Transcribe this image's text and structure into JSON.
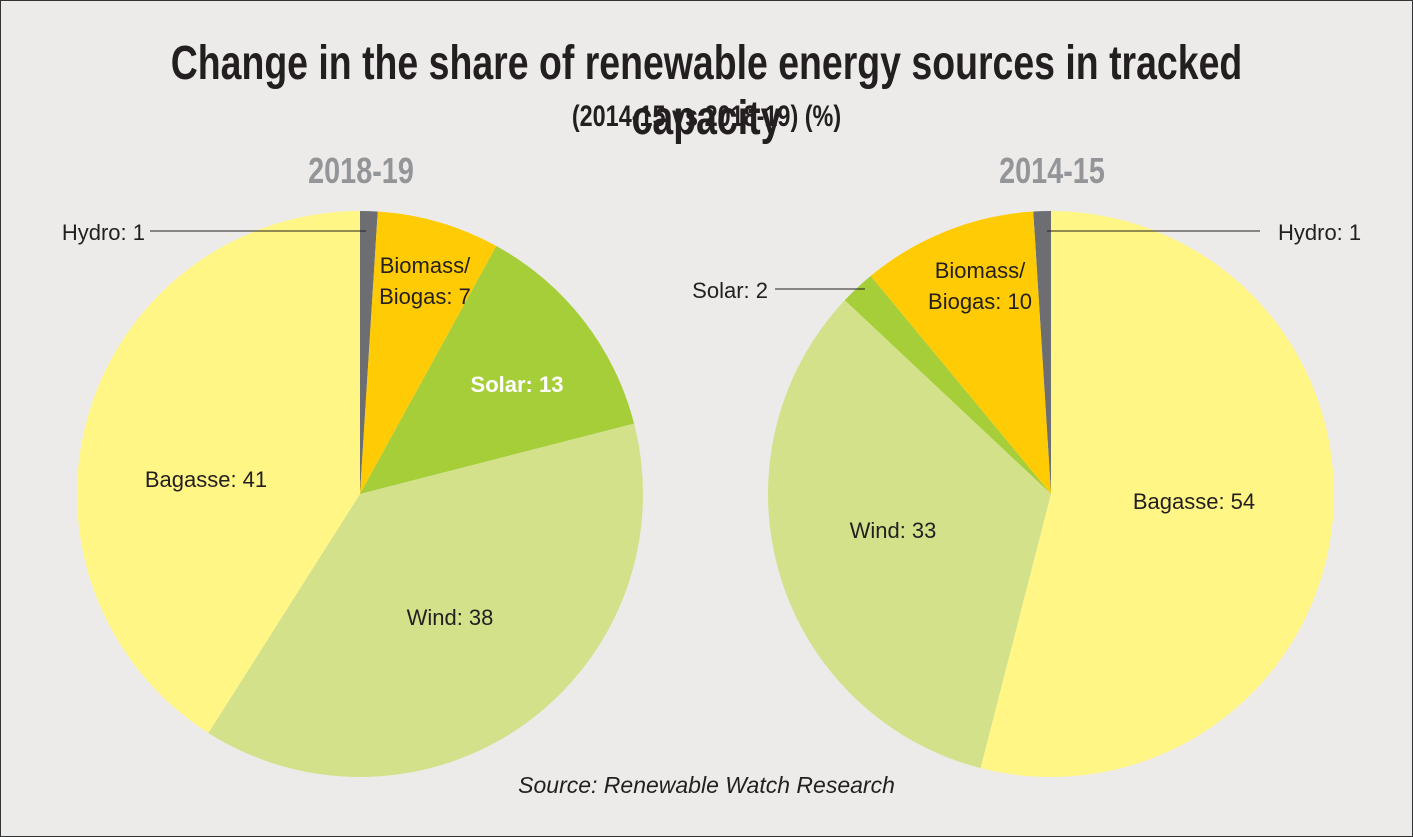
{
  "title": "Change in the share of renewable energy sources in tracked capacity",
  "subtitle": "(2014-15 vs 2018-19) (%)",
  "source": "Source: Renewable Watch Research",
  "chart_data": [
    {
      "type": "pie",
      "title": "2018-19",
      "direction": "clockwise",
      "start": "top",
      "slices": [
        {
          "label": "Hydro",
          "value": 1,
          "color": "#6d6e71",
          "text": "Hydro: 1",
          "text2": ""
        },
        {
          "label": "Biomass/Biogas",
          "value": 7,
          "color": "#ffcb05",
          "text": "Biomass/",
          "text2": "Biogas: 7"
        },
        {
          "label": "Solar",
          "value": 13,
          "color": "#a6ce39",
          "text": "Solar: 13",
          "text2": ""
        },
        {
          "label": "Wind",
          "value": 38,
          "color": "#d3e28a",
          "text": "Wind: 38",
          "text2": ""
        },
        {
          "label": "Bagasse",
          "value": 41,
          "color": "#fff685",
          "text": "Bagasse: 41",
          "text2": ""
        }
      ]
    },
    {
      "type": "pie",
      "title": "2014-15",
      "direction": "counterclockwise",
      "start": "top",
      "slices": [
        {
          "label": "Hydro",
          "value": 1,
          "color": "#6d6e71",
          "text": "Hydro: 1",
          "text2": ""
        },
        {
          "label": "Biomass/Biogas",
          "value": 10,
          "color": "#ffcb05",
          "text": "Biomass/",
          "text2": "Biogas: 10"
        },
        {
          "label": "Solar",
          "value": 2,
          "color": "#a6ce39",
          "text": "Solar: 2",
          "text2": ""
        },
        {
          "label": "Wind",
          "value": 33,
          "color": "#d3e28a",
          "text": "Wind: 33",
          "text2": ""
        },
        {
          "label": "Bagasse",
          "value": 54,
          "color": "#fff685",
          "text": "Bagasse: 54",
          "text2": ""
        }
      ]
    }
  ]
}
